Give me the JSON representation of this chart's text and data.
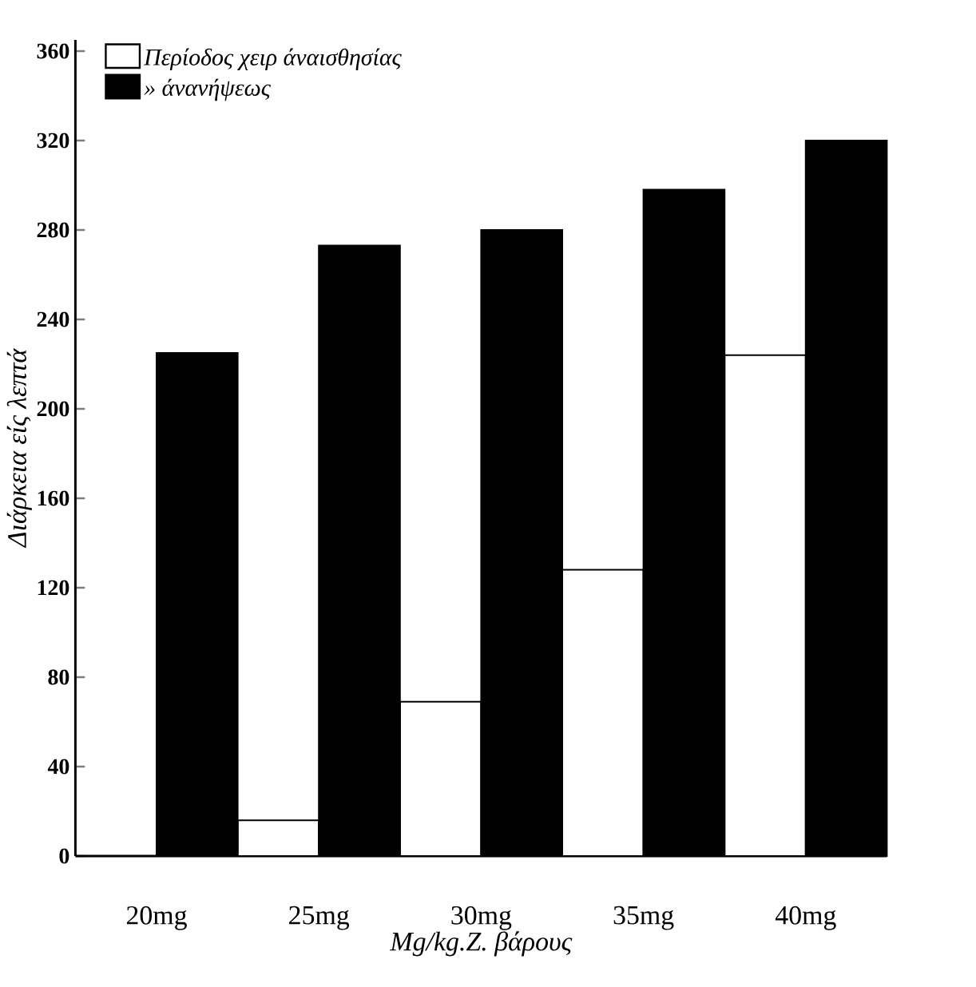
{
  "chart_data": {
    "type": "bar",
    "categories": [
      "20mg",
      "25mg",
      "30mg",
      "35mg",
      "40mg"
    ],
    "series": [
      {
        "name": "Περίοδος χειρ άναισθησίας",
        "color": "#ffffff",
        "values": [
          null,
          16,
          69,
          128,
          224
        ]
      },
      {
        "name": "» άνανήψεως",
        "color": "#000000",
        "values": [
          225,
          273,
          280,
          298,
          320
        ]
      }
    ],
    "ylim": [
      0,
      365
    ],
    "yticks": [
      0,
      40,
      80,
      120,
      160,
      200,
      240,
      280,
      320,
      360
    ],
    "ylabel": "Διάρκεια είς λεπτά",
    "xlabel": "Mg/kg.Ζ. βάρους",
    "legend": "top left"
  }
}
